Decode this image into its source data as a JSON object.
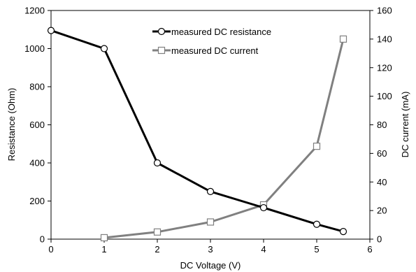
{
  "chart_data": {
    "type": "line",
    "xlabel": "DC Voltage (V)",
    "ylabel": "Resistance (Ohm)",
    "y2label": "DC current (mA)",
    "xlim": [
      0,
      6
    ],
    "ylim": [
      0,
      1200
    ],
    "y2lim": [
      0,
      160
    ],
    "xticks": [
      "0",
      "1",
      "2",
      "3",
      "4",
      "5",
      "6"
    ],
    "yticks": [
      "0",
      "200",
      "400",
      "600",
      "800",
      "1000",
      "1200"
    ],
    "y2ticks": [
      "0",
      "20",
      "40",
      "60",
      "80",
      "100",
      "120",
      "140",
      "160"
    ],
    "grid": false,
    "legend_position": "top-center",
    "series": [
      {
        "name": "measured DC resistance",
        "axis": "left",
        "marker": "circle",
        "color": "#000000",
        "x": [
          0,
          1,
          2,
          3,
          4,
          5,
          5.5
        ],
        "y": [
          1095,
          1000,
          400,
          250,
          165,
          78,
          40
        ]
      },
      {
        "name": "measured DC current",
        "axis": "right",
        "marker": "square",
        "color": "#808080",
        "x": [
          1,
          2,
          3,
          4,
          5,
          5.5
        ],
        "y": [
          1,
          5,
          12,
          24,
          65,
          140
        ]
      }
    ]
  }
}
